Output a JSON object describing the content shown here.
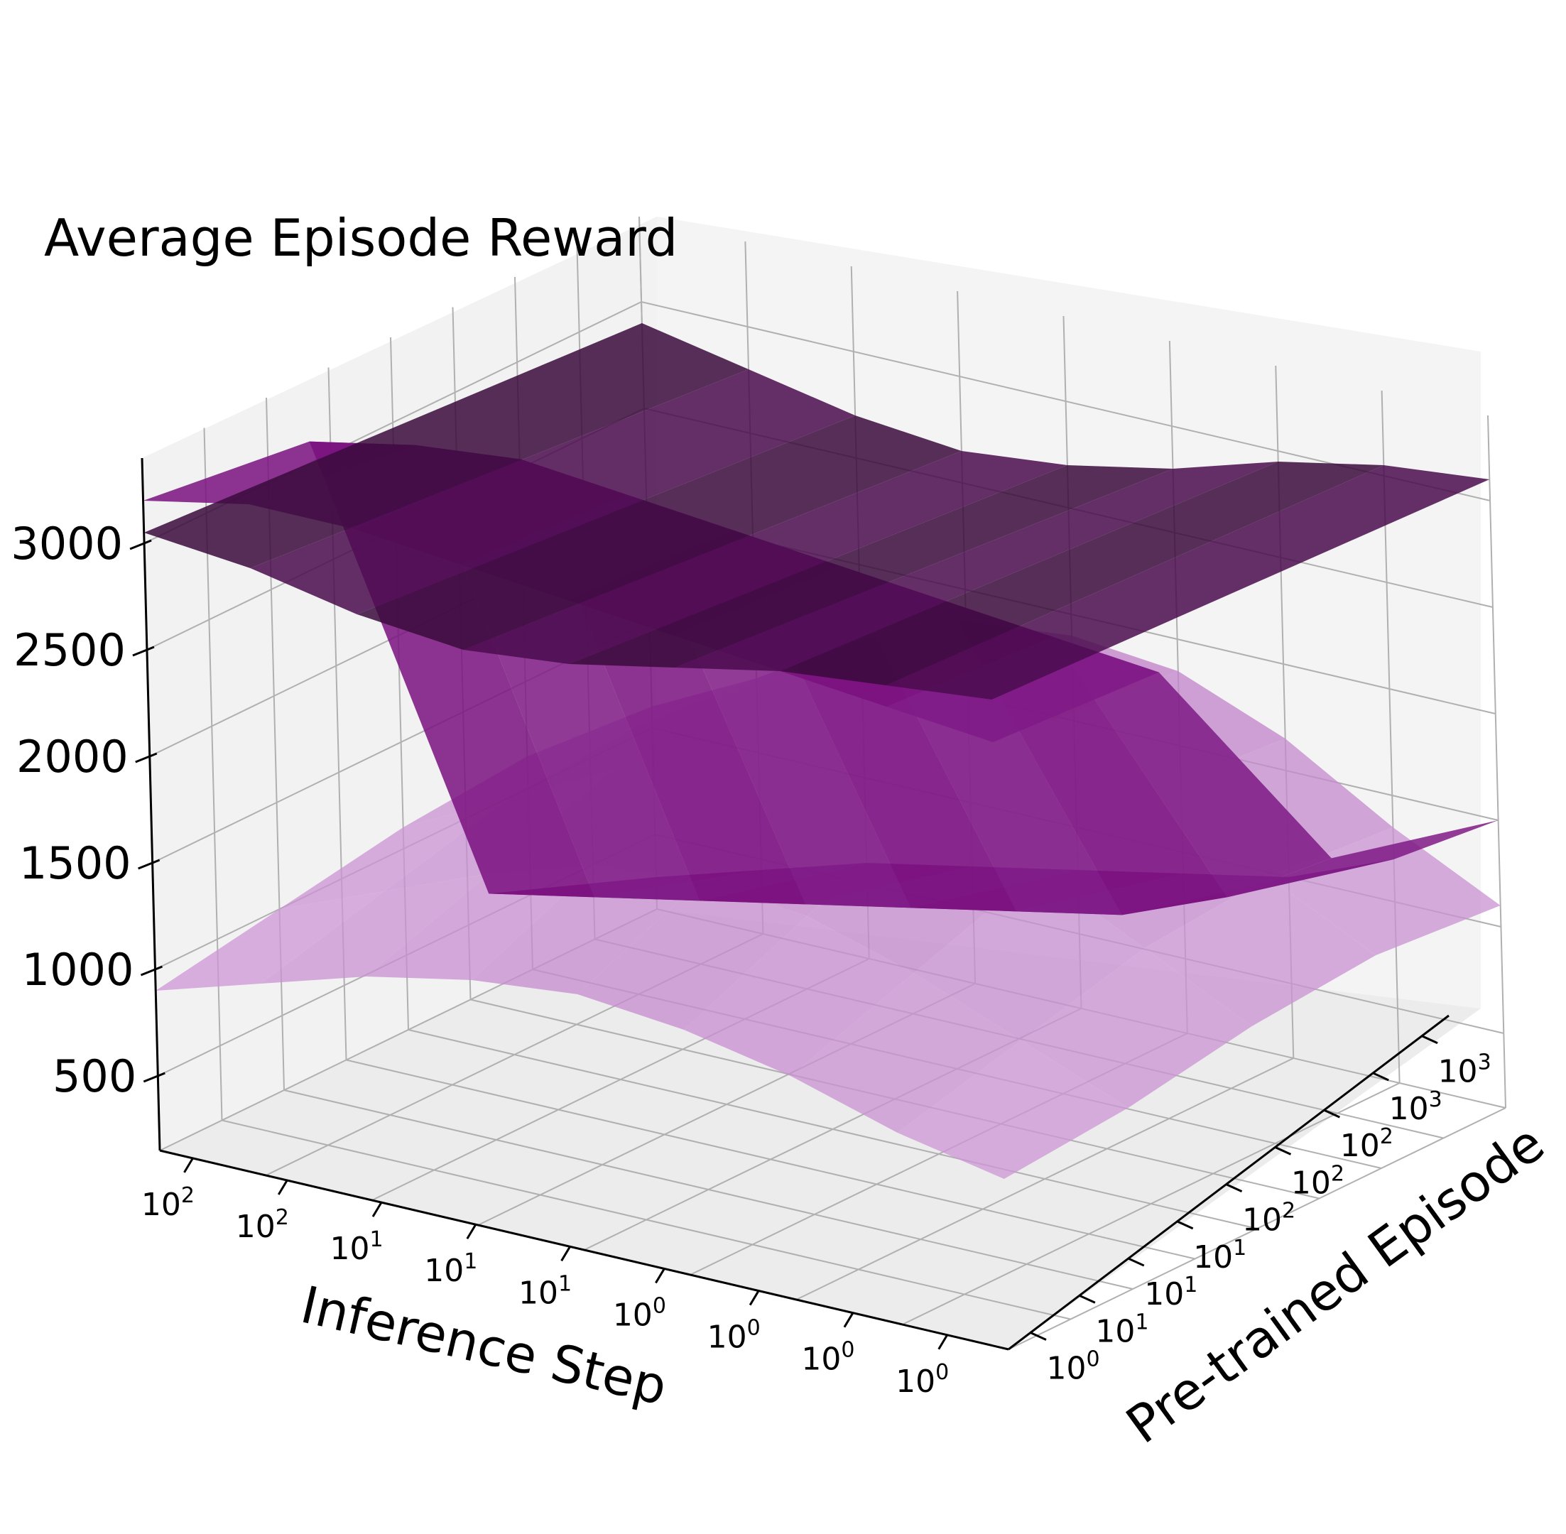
{
  "chart_data": {
    "type": "surface3d",
    "title": "Average Episode Reward",
    "xlabel": "Inference Step",
    "ylabel": "Pre-trained Episode",
    "zlabel": "",
    "x_tick_labels": [
      {
        "base": "10",
        "exp": "2"
      },
      {
        "base": "10",
        "exp": "2"
      },
      {
        "base": "10",
        "exp": "1"
      },
      {
        "base": "10",
        "exp": "1"
      },
      {
        "base": "10",
        "exp": "1"
      },
      {
        "base": "10",
        "exp": "0"
      },
      {
        "base": "10",
        "exp": "0"
      },
      {
        "base": "10",
        "exp": "0"
      },
      {
        "base": "10",
        "exp": "0"
      }
    ],
    "y_tick_labels": [
      {
        "base": "10",
        "exp": "0"
      },
      {
        "base": "10",
        "exp": "1"
      },
      {
        "base": "10",
        "exp": "1"
      },
      {
        "base": "10",
        "exp": "1"
      },
      {
        "base": "10",
        "exp": "2"
      },
      {
        "base": "10",
        "exp": "2"
      },
      {
        "base": "10",
        "exp": "2"
      },
      {
        "base": "10",
        "exp": "3"
      },
      {
        "base": "10",
        "exp": "3"
      }
    ],
    "z_ticks": [
      500,
      1000,
      1500,
      2000,
      2500,
      3000
    ],
    "zlim": [
      150,
      3400
    ],
    "grid": true,
    "colors": {
      "pane": "#f2f2f2",
      "grid": "#b0b0b0",
      "surface_low": "#dcaee6",
      "surface_high": "#7a107f",
      "surface_top": "#3a0a3c"
    },
    "surfaces": [
      {
        "description_color": "light-pink-band",
        "z": [
          [
            900,
            1050,
            1200,
            1300,
            1350,
            1300,
            1200,
            1050,
            950
          ],
          [
            1000,
            1200,
            1400,
            1550,
            1600,
            1550,
            1400,
            1200,
            1000
          ],
          [
            1100,
            1350,
            1600,
            1750,
            1800,
            1750,
            1600,
            1350,
            1100
          ],
          [
            1150,
            1400,
            1700,
            1900,
            1950,
            1900,
            1700,
            1400,
            1150
          ],
          [
            1100,
            1350,
            1650,
            1850,
            1900,
            1850,
            1650,
            1350,
            1100
          ]
        ]
      },
      {
        "description_color": "magenta-wall",
        "z": [
          [
            3200,
            3300,
            3300,
            3250,
            3200,
            3150,
            3100,
            3050,
            3000
          ],
          [
            3100,
            3200,
            3250,
            3200,
            3150,
            3100,
            3050,
            3000,
            2950
          ],
          [
            600,
            700,
            800,
            900,
            1000,
            1100,
            1200,
            1400,
            1700
          ],
          [
            300,
            450,
            600,
            700,
            800,
            900,
            1000,
            1200,
            1500
          ]
        ]
      },
      {
        "description_color": "dark-top-sheet",
        "z": [
          [
            3050,
            3000,
            2900,
            2850,
            2900,
            3000,
            3100,
            3150,
            3200
          ],
          [
            2900,
            2800,
            2700,
            2650,
            2700,
            2800,
            2950,
            3050,
            3100
          ]
        ]
      }
    ]
  }
}
